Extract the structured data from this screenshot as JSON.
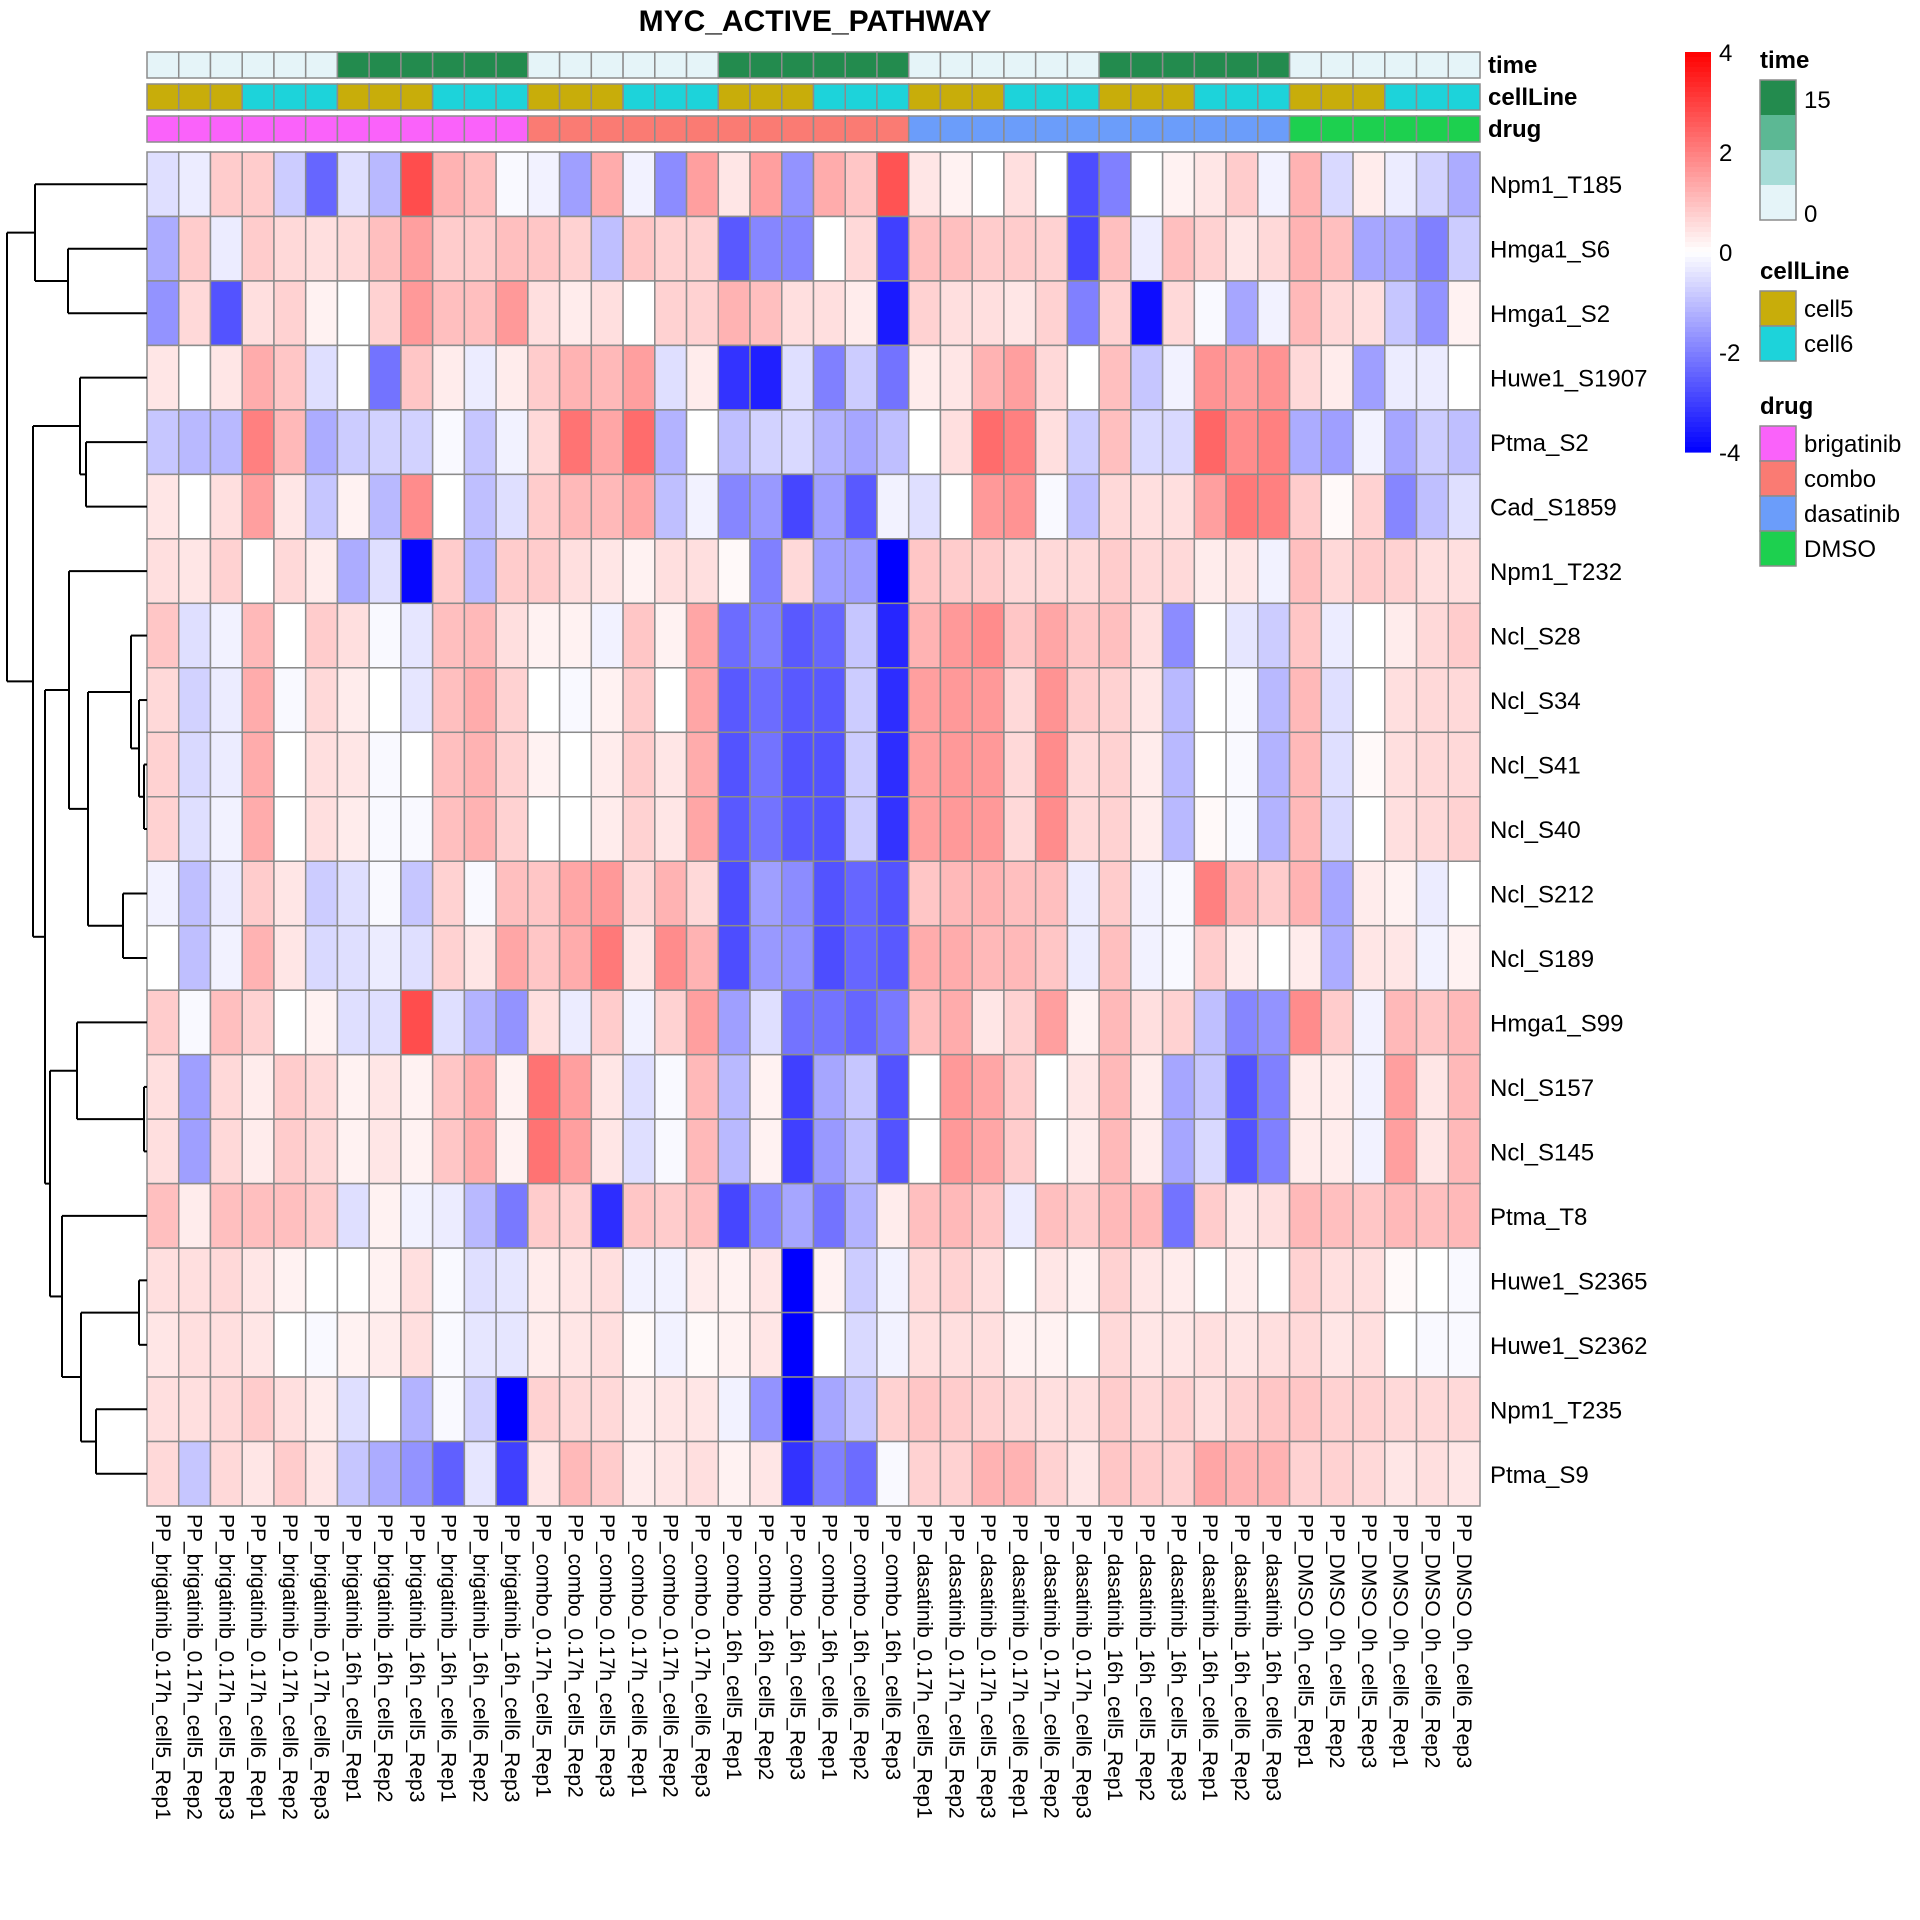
{
  "chart_data": {
    "type": "heatmap",
    "title": "MYC_ACTIVE_PATHWAY",
    "columns": [
      "PP_brigatinib_0.17h_cell5_Rep1",
      "PP_brigatinib_0.17h_cell5_Rep2",
      "PP_brigatinib_0.17h_cell5_Rep3",
      "PP_brigatinib_0.17h_cell6_Rep1",
      "PP_brigatinib_0.17h_cell6_Rep2",
      "PP_brigatinib_0.17h_cell6_Rep3",
      "PP_brigatinib_16h_cell5_Rep1",
      "PP_brigatinib_16h_cell5_Rep2",
      "PP_brigatinib_16h_cell5_Rep3",
      "PP_brigatinib_16h_cell6_Rep1",
      "PP_brigatinib_16h_cell6_Rep2",
      "PP_brigatinib_16h_cell6_Rep3",
      "PP_combo_0.17h_cell5_Rep1",
      "PP_combo_0.17h_cell5_Rep2",
      "PP_combo_0.17h_cell5_Rep3",
      "PP_combo_0.17h_cell6_Rep1",
      "PP_combo_0.17h_cell6_Rep2",
      "PP_combo_0.17h_cell6_Rep3",
      "PP_combo_16h_cell5_Rep1",
      "PP_combo_16h_cell5_Rep2",
      "PP_combo_16h_cell5_Rep3",
      "PP_combo_16h_cell6_Rep1",
      "PP_combo_16h_cell6_Rep2",
      "PP_combo_16h_cell6_Rep3",
      "PP_dasatinib_0.17h_cell5_Rep1",
      "PP_dasatinib_0.17h_cell5_Rep2",
      "PP_dasatinib_0.17h_cell5_Rep3",
      "PP_dasatinib_0.17h_cell6_Rep1",
      "PP_dasatinib_0.17h_cell6_Rep2",
      "PP_dasatinib_0.17h_cell6_Rep3",
      "PP_dasatinib_16h_cell5_Rep1",
      "PP_dasatinib_16h_cell5_Rep2",
      "PP_dasatinib_16h_cell5_Rep3",
      "PP_dasatinib_16h_cell6_Rep1",
      "PP_dasatinib_16h_cell6_Rep2",
      "PP_dasatinib_16h_cell6_Rep3",
      "PP_DMSO_0h_cell5_Rep1",
      "PP_DMSO_0h_cell5_Rep2",
      "PP_DMSO_0h_cell5_Rep3",
      "PP_DMSO_0h_cell6_Rep1",
      "PP_DMSO_0h_cell6_Rep2",
      "PP_DMSO_0h_cell6_Rep3"
    ],
    "rows": [
      "Npm1_T185",
      "Hmga1_S6",
      "Hmga1_S2",
      "Huwe1_S1907",
      "Ptma_S2",
      "Cad_S1859",
      "Npm1_T232",
      "Ncl_S28",
      "Ncl_S34",
      "Ncl_S41",
      "Ncl_S40",
      "Ncl_S212",
      "Ncl_S189",
      "Hmga1_S99",
      "Ncl_S157",
      "Ncl_S145",
      "Ptma_T8",
      "Huwe1_S2365",
      "Huwe1_S2362",
      "Npm1_T235",
      "Ptma_S9"
    ],
    "values": [
      [
        -0.5,
        -0.3,
        0.8,
        0.8,
        -0.8,
        -2.4,
        -0.5,
        -1.1,
        2.8,
        1.2,
        1.0,
        -0.1,
        -0.2,
        -1.5,
        1.3,
        -0.2,
        -1.8,
        1.5,
        0.4,
        1.5,
        -1.7,
        1.3,
        0.9,
        2.7,
        0.4,
        0.2,
        0.0,
        0.5,
        0.0,
        -2.8,
        -2.0,
        0.0,
        0.2,
        0.4,
        0.8,
        -0.2,
        1.2,
        -0.6,
        0.3,
        -0.3,
        -0.7,
        -1.3
      ],
      [
        -1.3,
        0.8,
        -0.3,
        0.8,
        0.6,
        0.5,
        0.6,
        1.0,
        1.5,
        0.8,
        0.8,
        1.0,
        0.9,
        0.7,
        -1.0,
        0.9,
        0.7,
        0.7,
        -2.6,
        -1.9,
        -1.9,
        0.0,
        0.6,
        -3.0,
        1.0,
        1.0,
        0.8,
        0.8,
        0.7,
        -2.9,
        1.0,
        -0.3,
        1.0,
        0.7,
        0.4,
        0.6,
        1.2,
        1.0,
        -1.4,
        -1.4,
        -2.0,
        -0.8
      ],
      [
        -1.7,
        0.6,
        -2.7,
        0.5,
        0.7,
        0.2,
        0.0,
        0.7,
        1.6,
        1.0,
        1.0,
        1.6,
        0.5,
        0.3,
        0.5,
        0.0,
        0.7,
        0.7,
        1.2,
        1.0,
        0.5,
        0.5,
        0.3,
        -3.6,
        0.7,
        0.5,
        0.5,
        0.4,
        0.7,
        -2.0,
        0.7,
        -3.8,
        0.6,
        -0.1,
        -1.4,
        -0.2,
        1.1,
        0.6,
        0.5,
        -0.9,
        -1.7,
        0.2
      ],
      [
        0.4,
        0.0,
        0.4,
        1.3,
        0.9,
        -0.5,
        0.0,
        -2.2,
        0.9,
        0.3,
        -0.3,
        0.3,
        0.8,
        1.2,
        1.1,
        1.5,
        -0.5,
        0.3,
        -3.2,
        -3.5,
        -0.5,
        -2.0,
        -0.8,
        -2.2,
        0.3,
        0.4,
        1.2,
        1.5,
        0.6,
        0.0,
        1.0,
        -0.9,
        -0.2,
        1.7,
        1.5,
        1.7,
        0.6,
        0.3,
        -1.5,
        -0.3,
        -0.3,
        0.0
      ],
      [
        -0.9,
        -1.1,
        -1.1,
        2.0,
        1.1,
        -1.3,
        -0.8,
        -0.7,
        -0.7,
        -0.1,
        -0.9,
        -0.2,
        0.6,
        2.2,
        1.4,
        2.3,
        -1.2,
        0.0,
        -1.0,
        -0.7,
        -0.6,
        -1.2,
        -1.4,
        -1.0,
        0.0,
        0.5,
        2.3,
        2.0,
        0.5,
        -0.8,
        1.0,
        -0.6,
        -0.6,
        2.4,
        1.8,
        2.0,
        -1.3,
        -1.5,
        -0.2,
        -1.4,
        -0.8,
        -1.0
      ],
      [
        0.4,
        0.0,
        0.5,
        1.5,
        0.4,
        -0.9,
        0.2,
        -1.1,
        1.8,
        0.0,
        -1.0,
        -0.5,
        0.8,
        1.1,
        1.1,
        1.4,
        -1.0,
        -0.2,
        -1.9,
        -1.6,
        -2.9,
        -1.5,
        -2.6,
        -0.2,
        -0.5,
        0.0,
        1.6,
        1.7,
        -0.1,
        -1.0,
        0.6,
        0.5,
        0.5,
        1.5,
        2.1,
        2.0,
        0.8,
        0.1,
        0.7,
        -1.9,
        -1.0,
        -0.5
      ],
      [
        0.5,
        0.4,
        0.7,
        0.0,
        0.6,
        0.3,
        -1.3,
        -0.5,
        -3.9,
        0.8,
        -1.1,
        0.8,
        0.8,
        0.5,
        0.4,
        0.2,
        0.5,
        0.5,
        0.1,
        -2.0,
        0.6,
        -1.5,
        -1.5,
        -4.0,
        0.9,
        0.8,
        0.8,
        0.6,
        0.6,
        0.6,
        0.8,
        0.6,
        0.6,
        0.3,
        0.4,
        -0.2,
        1.0,
        0.6,
        0.8,
        0.7,
        0.5,
        0.5
      ],
      [
        0.9,
        -0.5,
        -0.2,
        1.1,
        0.0,
        0.8,
        0.5,
        -0.1,
        -0.4,
        1.0,
        1.1,
        0.5,
        0.2,
        0.2,
        -0.2,
        0.9,
        0.2,
        1.4,
        -2.3,
        -2.0,
        -2.6,
        -2.4,
        -0.9,
        -3.4,
        1.2,
        1.6,
        1.8,
        0.9,
        1.4,
        0.9,
        1.0,
        0.5,
        -1.8,
        0.0,
        -0.4,
        -0.8,
        0.9,
        -0.3,
        0.0,
        0.3,
        0.6,
        0.8
      ],
      [
        0.6,
        -0.7,
        -0.3,
        1.3,
        -0.1,
        0.6,
        0.3,
        0.0,
        -0.4,
        1.0,
        1.3,
        0.7,
        0.0,
        -0.1,
        0.2,
        0.8,
        0.0,
        1.4,
        -2.6,
        -2.3,
        -2.6,
        -2.6,
        -0.8,
        -3.3,
        1.5,
        1.6,
        1.6,
        0.6,
        1.7,
        0.8,
        0.7,
        0.4,
        -1.1,
        0.0,
        -0.1,
        -1.1,
        1.1,
        -0.5,
        0.0,
        0.5,
        0.6,
        0.6
      ],
      [
        0.7,
        -0.6,
        -0.3,
        1.3,
        0.0,
        0.5,
        0.4,
        -0.1,
        0.0,
        1.0,
        1.2,
        0.7,
        0.2,
        0.0,
        0.3,
        0.8,
        0.4,
        1.3,
        -2.7,
        -2.2,
        -2.7,
        -2.7,
        -0.8,
        -3.3,
        1.5,
        1.6,
        1.6,
        0.6,
        1.8,
        0.6,
        0.7,
        0.3,
        -1.1,
        0.0,
        -0.1,
        -1.2,
        1.1,
        -0.5,
        0.1,
        0.5,
        0.6,
        0.6
      ],
      [
        0.7,
        -0.5,
        -0.2,
        1.3,
        0.0,
        0.5,
        0.3,
        -0.1,
        -0.1,
        1.0,
        1.2,
        0.7,
        0.0,
        0.0,
        0.3,
        0.7,
        0.4,
        1.4,
        -2.6,
        -2.2,
        -2.6,
        -2.7,
        -0.8,
        -3.2,
        1.5,
        1.6,
        1.6,
        0.6,
        1.8,
        0.6,
        0.7,
        0.3,
        -1.1,
        0.1,
        -0.1,
        -1.2,
        1.1,
        -0.6,
        0.0,
        0.5,
        0.6,
        0.7
      ],
      [
        -0.2,
        -1.0,
        -0.3,
        0.8,
        0.4,
        -0.8,
        -0.5,
        -0.1,
        -0.9,
        0.7,
        -0.1,
        1.0,
        0.9,
        1.4,
        1.6,
        0.6,
        1.2,
        0.6,
        -2.8,
        -1.5,
        -1.8,
        -2.7,
        -2.4,
        -2.7,
        0.9,
        1.1,
        1.2,
        1.0,
        1.0,
        -0.3,
        0.8,
        -0.2,
        -0.1,
        2.0,
        1.1,
        0.8,
        1.2,
        -1.4,
        0.3,
        0.2,
        -0.3,
        0.0
      ],
      [
        0.0,
        -1.0,
        -0.2,
        1.2,
        0.4,
        -0.6,
        -0.5,
        -0.3,
        -0.5,
        0.7,
        0.4,
        1.4,
        0.9,
        1.3,
        2.1,
        0.4,
        1.8,
        1.2,
        -2.8,
        -1.6,
        -1.7,
        -2.8,
        -2.4,
        -2.6,
        1.3,
        1.3,
        1.1,
        1.1,
        0.9,
        -0.3,
        1.0,
        -0.2,
        -0.1,
        0.8,
        0.3,
        0.0,
        0.3,
        -1.3,
        0.4,
        0.4,
        -0.2,
        0.2
      ],
      [
        0.8,
        -0.1,
        1.0,
        0.7,
        0.0,
        0.2,
        -0.5,
        -0.5,
        2.8,
        -0.5,
        -1.2,
        -1.7,
        0.5,
        -0.3,
        0.8,
        -0.2,
        0.7,
        1.5,
        -1.5,
        -0.5,
        -2.2,
        -2.2,
        -2.4,
        -2.1,
        1.0,
        1.3,
        0.4,
        0.7,
        1.5,
        0.2,
        1.1,
        0.5,
        0.7,
        -1.0,
        -1.9,
        -1.7,
        1.8,
        0.8,
        -0.2,
        1.1,
        0.9,
        1.1
      ],
      [
        0.5,
        -1.5,
        0.6,
        0.3,
        0.8,
        0.6,
        0.2,
        0.4,
        0.2,
        0.9,
        1.3,
        0.2,
        2.2,
        1.5,
        0.4,
        -0.5,
        -0.1,
        1.1,
        -1.1,
        0.2,
        -3.0,
        -1.4,
        -0.9,
        -2.7,
        0.0,
        1.6,
        1.4,
        0.8,
        0.0,
        0.4,
        1.1,
        0.3,
        -1.4,
        -0.9,
        -2.7,
        -2.0,
        0.3,
        0.3,
        -0.2,
        1.5,
        0.4,
        1.1
      ],
      [
        0.5,
        -1.5,
        0.6,
        0.3,
        0.8,
        0.6,
        0.2,
        0.4,
        0.2,
        0.9,
        1.3,
        0.2,
        2.2,
        1.5,
        0.4,
        -0.5,
        -0.1,
        1.1,
        -1.1,
        0.2,
        -3.0,
        -1.6,
        -1.0,
        -2.7,
        0.0,
        1.6,
        1.4,
        0.8,
        0.0,
        0.3,
        1.1,
        0.3,
        -1.4,
        -0.6,
        -2.7,
        -2.0,
        0.3,
        0.3,
        -0.2,
        1.5,
        0.4,
        1.1
      ],
      [
        1.0,
        0.3,
        1.0,
        1.0,
        1.0,
        0.8,
        -0.5,
        0.2,
        -0.2,
        -0.3,
        -1.1,
        -2.1,
        0.8,
        0.7,
        -3.3,
        0.9,
        0.8,
        1.0,
        -2.9,
        -1.9,
        -1.4,
        -2.2,
        -1.2,
        0.3,
        1.0,
        1.1,
        0.9,
        -0.3,
        1.0,
        0.8,
        1.1,
        1.1,
        -2.2,
        0.8,
        0.4,
        0.5,
        1.1,
        1.0,
        0.9,
        1.1,
        1.0,
        1.1
      ],
      [
        0.5,
        0.5,
        0.6,
        0.4,
        0.2,
        0.0,
        0.0,
        0.2,
        0.5,
        -0.1,
        -0.5,
        -0.4,
        0.3,
        0.4,
        0.5,
        -0.2,
        -0.2,
        0.3,
        0.2,
        0.4,
        -4.0,
        0.2,
        -0.8,
        -0.2,
        0.6,
        0.7,
        0.5,
        0.0,
        0.4,
        0.2,
        0.7,
        0.4,
        0.3,
        0.0,
        0.3,
        0.0,
        0.7,
        0.5,
        0.5,
        0.1,
        0.0,
        -0.1
      ],
      [
        0.4,
        0.5,
        0.5,
        0.4,
        0.0,
        -0.1,
        0.2,
        0.3,
        0.5,
        -0.1,
        -0.4,
        -0.4,
        0.3,
        0.4,
        0.5,
        0.1,
        -0.2,
        0.1,
        0.2,
        0.4,
        -4.0,
        0.0,
        -0.6,
        -0.2,
        0.5,
        0.5,
        0.5,
        0.2,
        0.2,
        0.0,
        0.6,
        0.4,
        0.4,
        0.5,
        0.4,
        0.5,
        0.6,
        0.4,
        0.5,
        0.0,
        -0.1,
        -0.1
      ],
      [
        0.5,
        0.5,
        0.6,
        0.8,
        0.5,
        0.3,
        -0.5,
        0.0,
        -1.2,
        -0.1,
        -0.7,
        -4.0,
        0.7,
        0.6,
        0.6,
        0.3,
        0.4,
        0.4,
        -0.2,
        -1.7,
        -4.0,
        -1.4,
        -0.9,
        0.7,
        0.9,
        0.8,
        0.7,
        0.6,
        0.5,
        0.5,
        0.8,
        0.6,
        0.7,
        0.5,
        0.7,
        0.9,
        0.9,
        0.7,
        0.7,
        0.6,
        0.6,
        0.6
      ],
      [
        0.6,
        -0.9,
        0.6,
        0.4,
        0.8,
        0.4,
        -0.9,
        -1.3,
        -1.7,
        -2.5,
        -0.4,
        -3.0,
        0.4,
        1.1,
        0.8,
        0.3,
        0.4,
        0.5,
        0.2,
        0.4,
        -3.2,
        -2.0,
        -2.3,
        -0.1,
        0.7,
        0.7,
        1.2,
        1.2,
        0.7,
        0.4,
        0.9,
        0.8,
        0.7,
        1.4,
        1.2,
        1.2,
        0.7,
        0.7,
        0.6,
        0.4,
        0.5,
        0.4
      ]
    ],
    "color_scale": {
      "min": -4,
      "max": 4,
      "low": "#0000ff",
      "mid": "#ffffff",
      "high": "#ff0000",
      "ticks": [
        "4",
        "2",
        "0",
        "-2",
        "-4"
      ]
    },
    "annotations": [
      {
        "name": "time",
        "values": [
          "0",
          "0",
          "0",
          "0",
          "0",
          "0",
          "15",
          "15",
          "15",
          "15",
          "15",
          "15",
          "0",
          "0",
          "0",
          "0",
          "0",
          "0",
          "15",
          "15",
          "15",
          "15",
          "15",
          "15",
          "0",
          "0",
          "0",
          "0",
          "0",
          "0",
          "15",
          "15",
          "15",
          "15",
          "15",
          "15",
          "0",
          "0",
          "0",
          "0",
          "0",
          "0"
        ]
      },
      {
        "name": "cellLine",
        "values": [
          "cell5",
          "cell5",
          "cell5",
          "cell6",
          "cell6",
          "cell6",
          "cell5",
          "cell5",
          "cell5",
          "cell6",
          "cell6",
          "cell6",
          "cell5",
          "cell5",
          "cell5",
          "cell6",
          "cell6",
          "cell6",
          "cell5",
          "cell5",
          "cell5",
          "cell6",
          "cell6",
          "cell6",
          "cell5",
          "cell5",
          "cell5",
          "cell6",
          "cell6",
          "cell6",
          "cell5",
          "cell5",
          "cell5",
          "cell6",
          "cell6",
          "cell6",
          "cell5",
          "cell5",
          "cell5",
          "cell6",
          "cell6",
          "cell6"
        ]
      },
      {
        "name": "drug",
        "values": [
          "brigatinib",
          "brigatinib",
          "brigatinib",
          "brigatinib",
          "brigatinib",
          "brigatinib",
          "brigatinib",
          "brigatinib",
          "brigatinib",
          "brigatinib",
          "brigatinib",
          "brigatinib",
          "combo",
          "combo",
          "combo",
          "combo",
          "combo",
          "combo",
          "combo",
          "combo",
          "combo",
          "combo",
          "combo",
          "combo",
          "dasatinib",
          "dasatinib",
          "dasatinib",
          "dasatinib",
          "dasatinib",
          "dasatinib",
          "dasatinib",
          "dasatinib",
          "dasatinib",
          "dasatinib",
          "dasatinib",
          "dasatinib",
          "DMSO",
          "DMSO",
          "DMSO",
          "DMSO",
          "DMSO",
          "DMSO"
        ]
      }
    ],
    "legends": {
      "time": {
        "title": "time",
        "labels": [
          "15",
          "0"
        ],
        "colors": [
          "#238b4e",
          "#5cb894",
          "#a6dcd7",
          "#e5f4f8"
        ],
        "color_map": {
          "0": "#e5f4f8",
          "15": "#238b4e"
        }
      },
      "cellLine": {
        "title": "cellLine",
        "items": [
          {
            "label": "cell5",
            "color": "#c8ad0a"
          },
          {
            "label": "cell6",
            "color": "#1dd3da"
          }
        ]
      },
      "drug": {
        "title": "drug",
        "items": [
          {
            "label": "brigatinib",
            "color": "#fa62fa"
          },
          {
            "label": "combo",
            "color": "#fa7b73"
          },
          {
            "label": "dasatinib",
            "color": "#6b9dfa"
          },
          {
            "label": "DMSO",
            "color": "#1dd04f"
          }
        ]
      }
    },
    "legend_position": "right",
    "row_dendrogram": true
  }
}
